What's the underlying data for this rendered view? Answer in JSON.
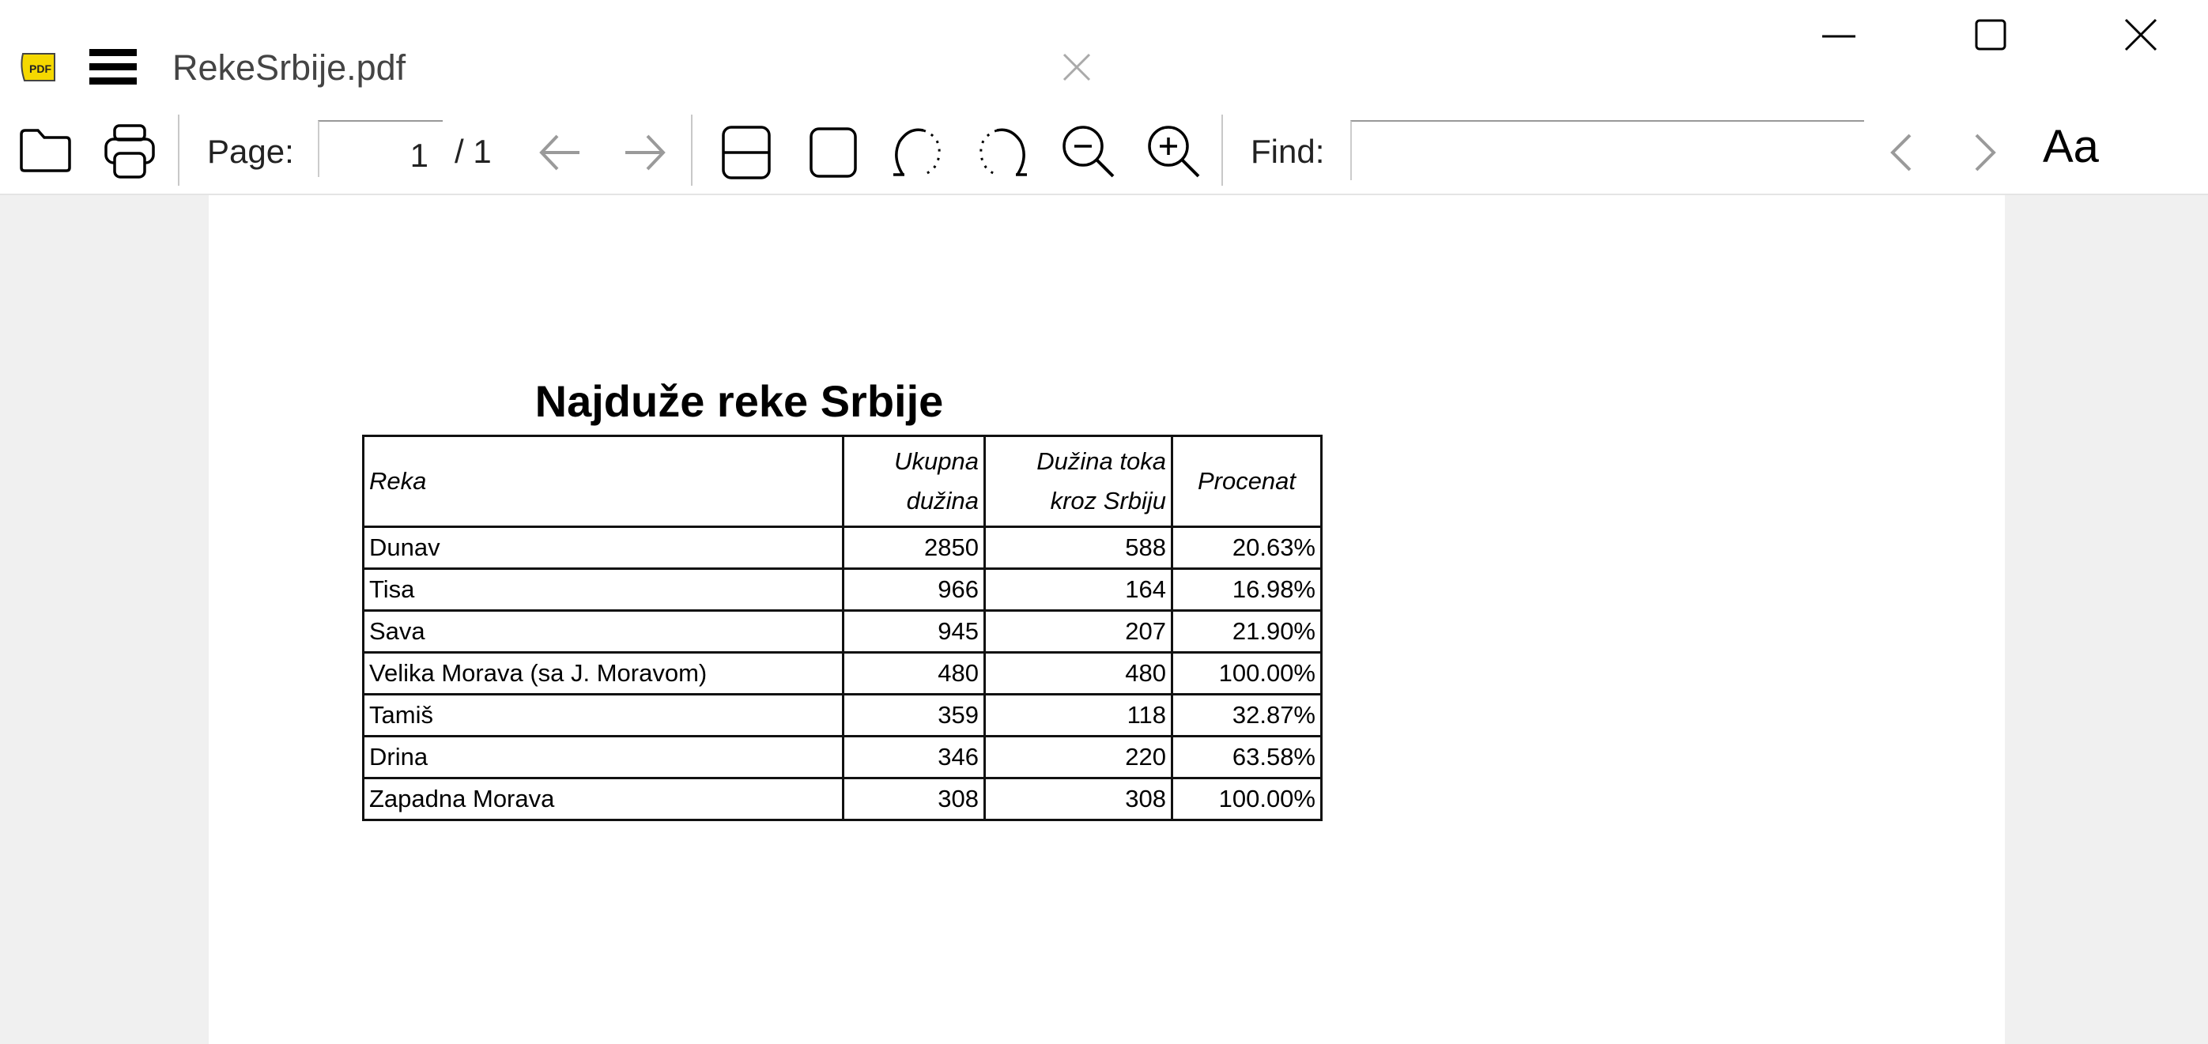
{
  "window": {
    "title": "RekeSrbije.pdf",
    "controls": [
      "minimize-icon",
      "maximize-icon",
      "close-icon"
    ]
  },
  "toolbar": {
    "page_label": "Page:",
    "page_value": "1",
    "page_total": "/ 1",
    "find_label": "Find:",
    "find_value": "",
    "font_icon_label": "Aa"
  },
  "document": {
    "title": "Najduže reke Srbije",
    "table": {
      "headers": [
        "Reka",
        "Ukupna dužina",
        "Dužina toka kroz Srbiju",
        "Procenat"
      ],
      "rows": [
        [
          "Dunav",
          "2850",
          "588",
          "20.63%"
        ],
        [
          "Tisa",
          "966",
          "164",
          "16.98%"
        ],
        [
          "Sava",
          "945",
          "207",
          "21.90%"
        ],
        [
          "Velika Morava (sa J. Moravom)",
          "480",
          "480",
          "100.00%"
        ],
        [
          "Tamiš",
          "359",
          "118",
          "32.87%"
        ],
        [
          "Drina",
          "346",
          "220",
          "63.58%"
        ],
        [
          "Zapadna Morava",
          "308",
          "308",
          "100.00%"
        ]
      ]
    }
  },
  "colors": {
    "logo_yellow": "#f5d800",
    "disabled_arrow": "#9a9a9a",
    "viewer_bg": "#f0f0f0"
  }
}
